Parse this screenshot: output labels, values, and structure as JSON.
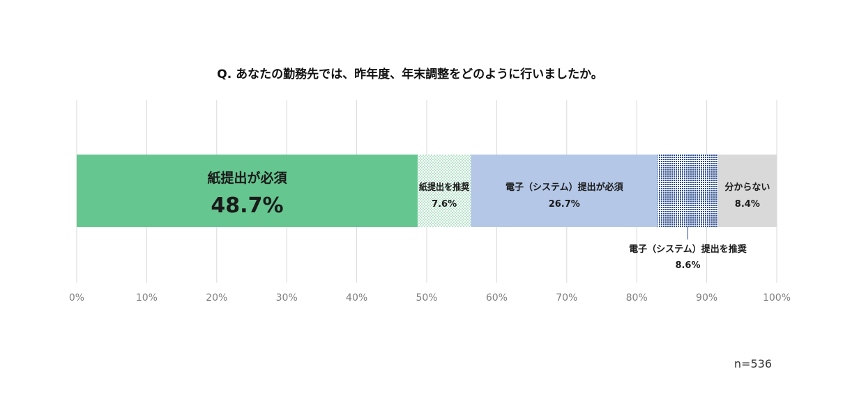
{
  "chart_data": {
    "type": "bar",
    "orientation": "horizontal-stacked-100",
    "title": "Q. あなたの勤務先では、昨年度、年末調整をどのように行いましたか。",
    "sample_size": "n=536",
    "xlim": [
      0,
      100
    ],
    "x_ticks": [
      "0%",
      "10%",
      "20%",
      "30%",
      "40%",
      "50%",
      "60%",
      "70%",
      "80%",
      "90%",
      "100%"
    ],
    "grid": true,
    "series": [
      {
        "name": "紙提出が必須",
        "value": 48.7,
        "value_label": "48.7%",
        "color": "#66c690",
        "pattern": "solid",
        "label_placement": "inside-large"
      },
      {
        "name": "紙提出を推奨",
        "value": 7.6,
        "value_label": "7.6%",
        "color": "#66c690",
        "pattern": "light-dots",
        "label_placement": "inside"
      },
      {
        "name": "電子（システム）提出が必須",
        "value": 26.7,
        "value_label": "26.7%",
        "color": "#b4c7e7",
        "pattern": "solid",
        "label_placement": "inside"
      },
      {
        "name": "電子（システム）提出を推奨",
        "value": 8.6,
        "value_label": "8.6%",
        "color": "#2f4f8f",
        "pattern": "dark-dots",
        "label_placement": "below-callout"
      },
      {
        "name": "分からない",
        "value": 8.4,
        "value_label": "8.4%",
        "color": "#d9d9d9",
        "pattern": "solid",
        "label_placement": "inside"
      }
    ]
  }
}
